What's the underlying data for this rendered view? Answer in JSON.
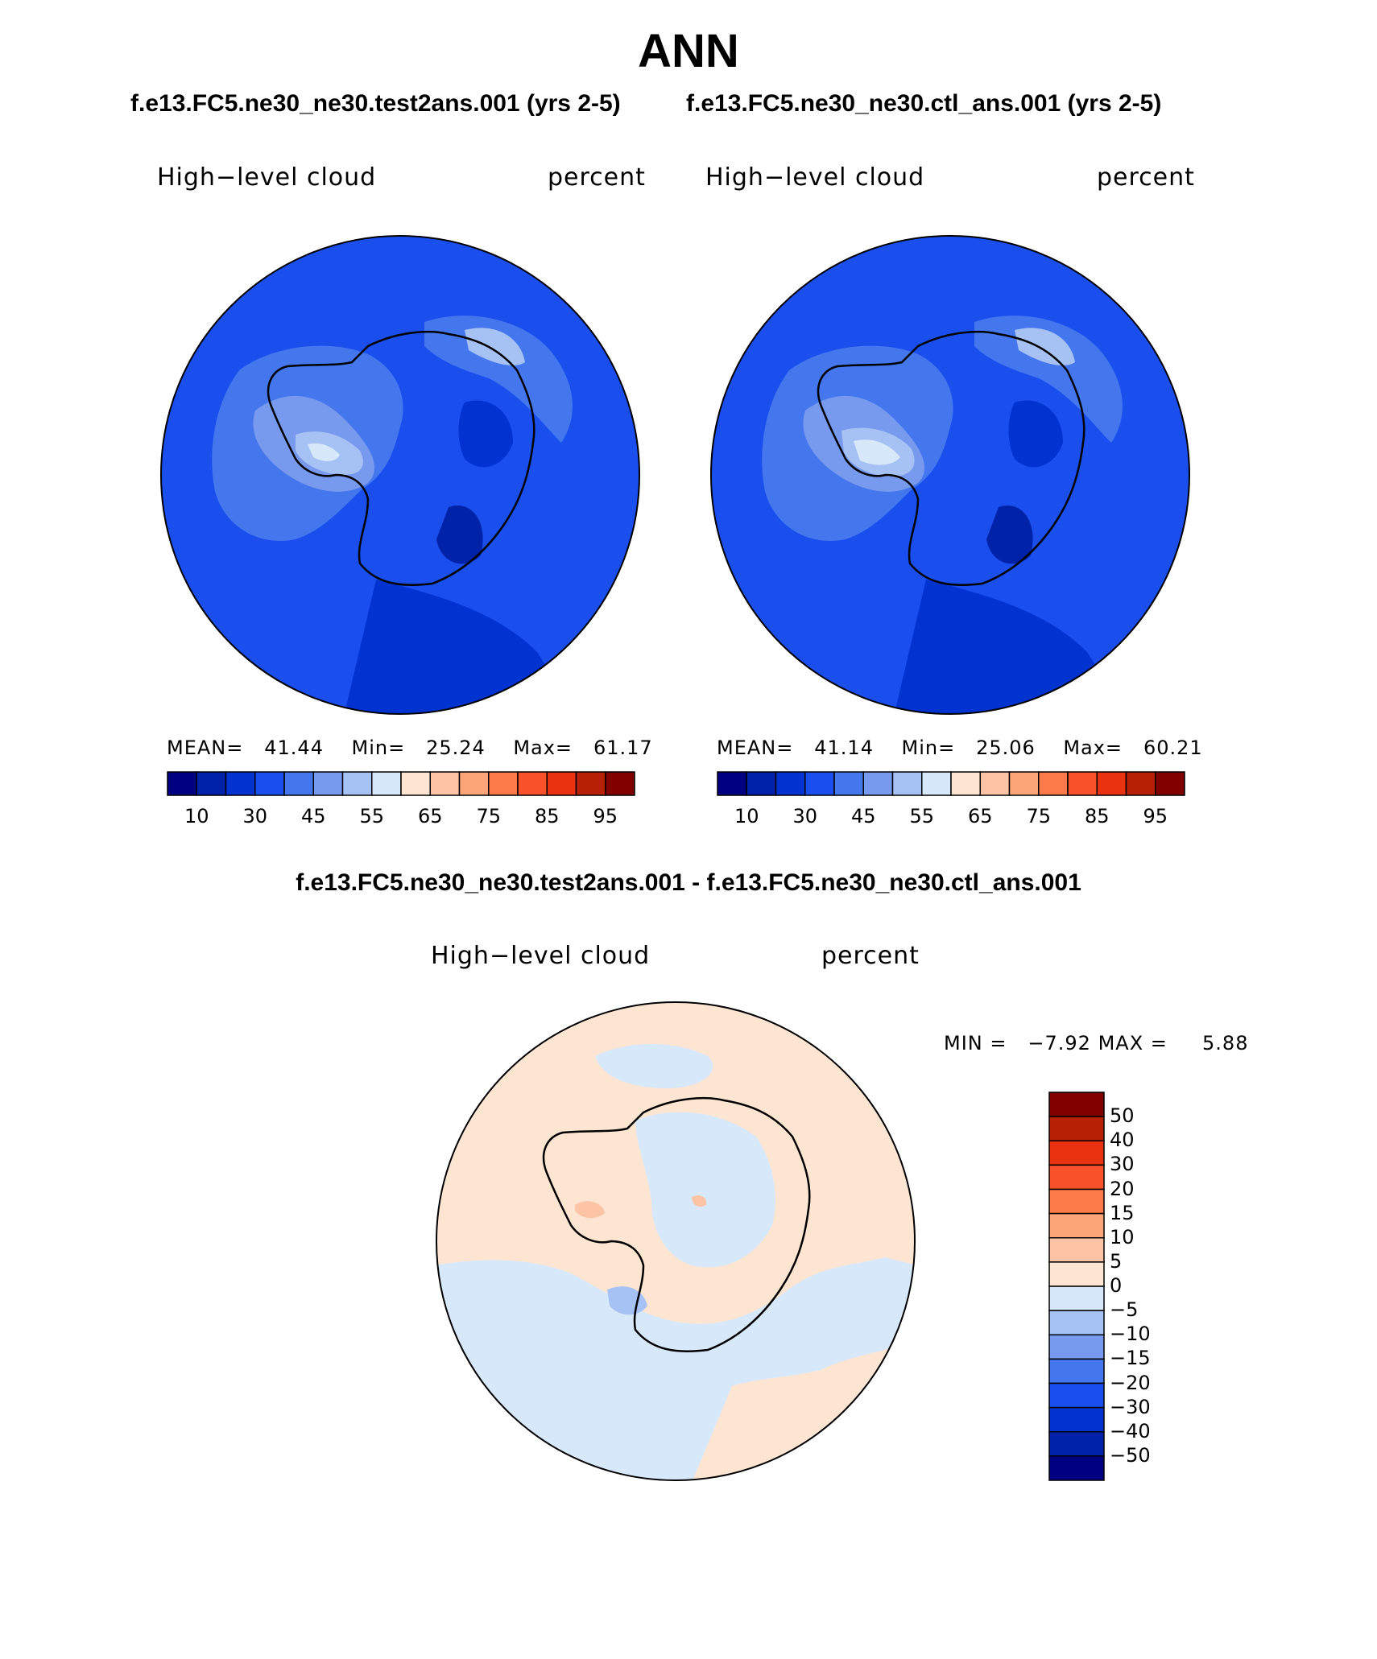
{
  "title": "ANN",
  "colors": {
    "blue_scale": [
      "#000080",
      "#0022a8",
      "#0033d0",
      "#1a4fee",
      "#4477ee",
      "#7799ee",
      "#a6c2f5",
      "#d8e8fb"
    ],
    "warm_scale": [
      "#fde5d2",
      "#fcc4a5",
      "#fca579",
      "#fc7a4a",
      "#f9512a",
      "#e83210",
      "#b82005",
      "#800000"
    ],
    "coastline": "#000000"
  },
  "panels": [
    {
      "case": "f.e13.FC5.ne30_ne30.test2ans.001 (yrs 2-5)",
      "variable": "High−level cloud",
      "units": "percent",
      "stats": {
        "mean_label": "MEAN=",
        "mean": "41.44",
        "min_label": "Min=",
        "min": "25.24",
        "max_label": "Max=",
        "max": "61.17"
      },
      "colorbar_labels": [
        "10",
        "30",
        "45",
        "55",
        "65",
        "75",
        "85",
        "95"
      ]
    },
    {
      "case": "f.e13.FC5.ne30_ne30.ctl_ans.001 (yrs 2-5)",
      "variable": "High−level cloud",
      "units": "percent",
      "stats": {
        "mean_label": "MEAN=",
        "mean": "41.14",
        "min_label": "Min=",
        "min": "25.06",
        "max_label": "Max=",
        "max": "60.21"
      },
      "colorbar_labels": [
        "10",
        "30",
        "45",
        "55",
        "65",
        "75",
        "85",
        "95"
      ]
    }
  ],
  "difference": {
    "title": "f.e13.FC5.ne30_ne30.test2ans.001 - f.e13.FC5.ne30_ne30.ctl_ans.001",
    "variable": "High−level cloud",
    "units": "percent",
    "min_label": "MIN =",
    "min": "−7.92",
    "max_label": "MAX =",
    "max": "5.88",
    "colorbar_labels": [
      "50",
      "40",
      "30",
      "20",
      "15",
      "10",
      "5",
      "0",
      "−5",
      "−10",
      "−15",
      "−20",
      "−30",
      "−40",
      "−50"
    ]
  }
}
